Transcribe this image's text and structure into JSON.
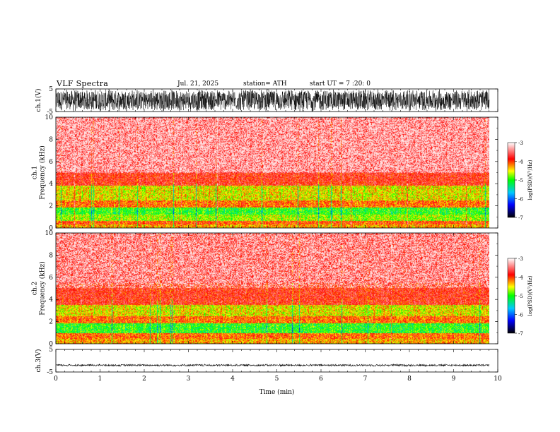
{
  "header": {
    "title": "VLF Spectra",
    "date": "Jul. 21, 2025",
    "station": "station= ATH",
    "start": "start UT = 7 :20: 0"
  },
  "colors": {
    "colormap": [
      "#000000",
      "#0000ff",
      "#00c8ff",
      "#00ff00",
      "#ffff00",
      "#ff0000",
      "#ffffff"
    ],
    "waveform": "#000000",
    "axis": "#000000"
  },
  "chart_data": [
    {
      "type": "line",
      "name": "ch1-waveform",
      "ylabel": "ch.1(V)",
      "ylim": [
        -5,
        5
      ],
      "yticks": [
        "5",
        "-5"
      ],
      "xlim": [
        0,
        10
      ],
      "amplitude_envelope": [
        3.5,
        5
      ]
    },
    {
      "type": "heatmap",
      "name": "ch1-spectrogram",
      "ylabel": "ch.1 Frequency (kHz)",
      "ylim": [
        0,
        10
      ],
      "yticks": [
        "0",
        "2",
        "4",
        "6",
        "8",
        "10"
      ],
      "xlim": [
        0,
        9.8
      ],
      "colorbar": {
        "label": "log(PSD)(V²/Hz)",
        "ticks": [
          "-3",
          "-4",
          "-5",
          "-6",
          "-7"
        ],
        "range": [
          -7,
          -3
        ]
      },
      "bands": [
        {
          "from": 0.0,
          "to": 0.3,
          "value": -4.3
        },
        {
          "from": 0.3,
          "to": 0.6,
          "value": -4.0
        },
        {
          "from": 0.6,
          "to": 1.2,
          "value": -4.7
        },
        {
          "from": 1.2,
          "to": 1.8,
          "value": -5.0
        },
        {
          "from": 1.8,
          "to": 2.5,
          "value": -4.1
        },
        {
          "from": 2.5,
          "to": 3.8,
          "value": -4.5
        },
        {
          "from": 3.8,
          "to": 5.0,
          "value": -3.8
        },
        {
          "from": 5.0,
          "to": 10.0,
          "value": -3.5
        }
      ]
    },
    {
      "type": "heatmap",
      "name": "ch2-spectrogram",
      "ylabel": "ch.2 Frequency (kHz)",
      "ylim": [
        0,
        10
      ],
      "yticks": [
        "0",
        "2",
        "4",
        "6",
        "8",
        "10"
      ],
      "xlim": [
        0,
        9.8
      ],
      "colorbar": {
        "label": "log(PSD)(V²/Hz)",
        "ticks": [
          "-3",
          "-4",
          "-5",
          "-6",
          "-7"
        ],
        "range": [
          -7,
          -3
        ]
      },
      "bands": [
        {
          "from": 0.0,
          "to": 0.4,
          "value": -4.3
        },
        {
          "from": 0.4,
          "to": 0.9,
          "value": -4.1
        },
        {
          "from": 0.9,
          "to": 1.8,
          "value": -5.0
        },
        {
          "from": 1.8,
          "to": 2.5,
          "value": -4.1
        },
        {
          "from": 2.5,
          "to": 3.5,
          "value": -4.5
        },
        {
          "from": 3.5,
          "to": 5.5,
          "value": -3.8
        },
        {
          "from": 5.5,
          "to": 10.0,
          "value": -3.6
        }
      ]
    },
    {
      "type": "line",
      "name": "ch3-waveform",
      "ylabel": "ch.3(V)",
      "ylim": [
        -5,
        5
      ],
      "yticks": [
        "5",
        "-5"
      ],
      "xlim": [
        0,
        10
      ],
      "level": -2,
      "amplitude_envelope": [
        0.3,
        0.5
      ]
    }
  ],
  "time_axis": {
    "label": "Time (min)",
    "ticks": [
      "0",
      "1",
      "2",
      "3",
      "4",
      "5",
      "6",
      "7",
      "8",
      "9",
      "10"
    ],
    "range": [
      0,
      10
    ]
  }
}
